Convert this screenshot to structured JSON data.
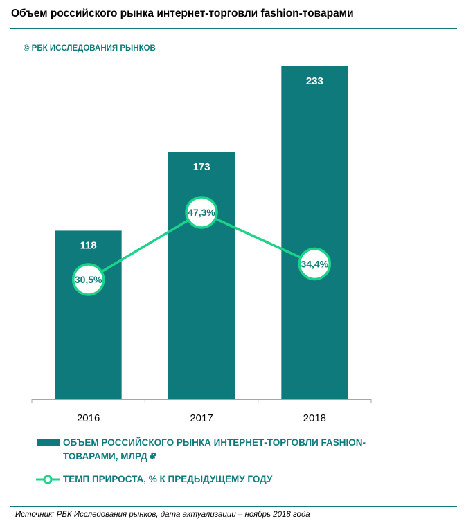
{
  "header": {
    "title": "Объем российского рынка интернет-торговли fashion-товарами",
    "brand": "© РБК ИССЛЕДОВАНИЯ РЫНКОВ"
  },
  "chart_data": {
    "type": "bar",
    "categories": [
      "2016",
      "2017",
      "2018"
    ],
    "ylim": [
      0,
      233
    ],
    "series": [
      {
        "name": "ОБЪЕМ РОССИЙСКОГО РЫНКА ИНТЕРНЕТ-ТОРГОВЛИ FASHION-ТОВАРАМИ, МЛРД ₽",
        "kind": "bar",
        "values": [
          118,
          173,
          233
        ],
        "labels": [
          "118",
          "173",
          "233"
        ]
      },
      {
        "name": "ТЕМП ПРИРОСТА, % К ПРЕДЫДУЩЕМУ ГОДУ",
        "kind": "line",
        "values": [
          30.5,
          47.3,
          34.4
        ],
        "labels": [
          "30,5%",
          "47,3%",
          "34,4%"
        ]
      }
    ],
    "legend_position": "bottom",
    "grid": false
  },
  "colors": {
    "bar": "#0f7a7c",
    "line": "#1dd38a",
    "text_accent": "#0f7a7c"
  },
  "footer": {
    "source": "Источник: РБК Исследования рынков, дата актуализации – ноябрь 2018 года"
  }
}
